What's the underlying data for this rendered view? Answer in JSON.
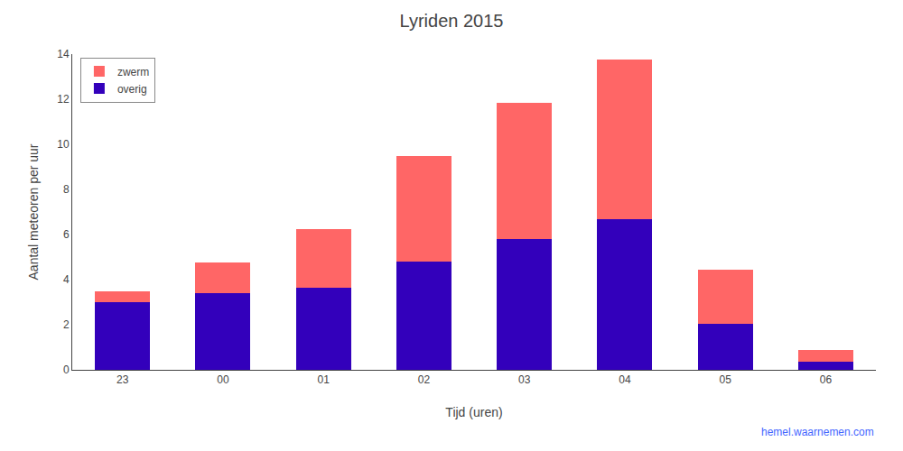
{
  "chart_data": {
    "type": "bar",
    "stacked": true,
    "title": "Lyriden 2015",
    "xlabel": "Tijd (uren)",
    "ylabel": "Aantal meteoren per uur",
    "categories": [
      "23",
      "00",
      "01",
      "02",
      "03",
      "04",
      "05",
      "06"
    ],
    "series": [
      {
        "name": "overig",
        "color": "#3300BB",
        "values": [
          3.0,
          3.4,
          3.65,
          4.8,
          5.8,
          6.7,
          2.05,
          0.38
        ]
      },
      {
        "name": "zwerm",
        "color": "#FF6666",
        "values": [
          0.5,
          1.35,
          2.6,
          4.7,
          6.05,
          7.05,
          2.4,
          0.52
        ]
      }
    ],
    "ylim": [
      0,
      14
    ],
    "yticks": [
      0,
      2,
      4,
      6,
      8,
      10,
      12,
      14
    ],
    "grid": false,
    "legend": "upper left",
    "annotations": [
      "hemel.waarnemen.com"
    ]
  }
}
